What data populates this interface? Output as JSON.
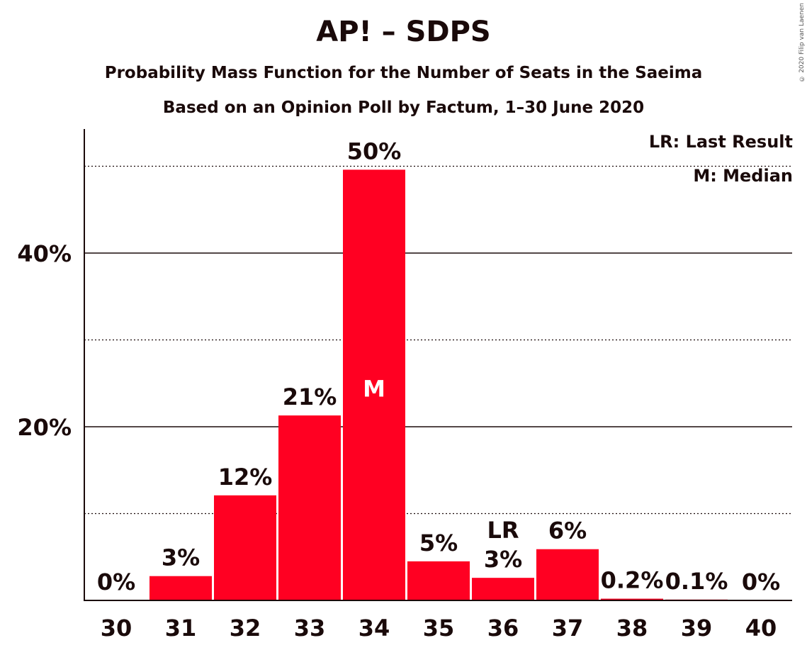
{
  "chart_data": {
    "type": "bar",
    "title": "AP! – SDPS",
    "subtitle": "Probability Mass Function for the Number of Seats in the Saeima",
    "subtitle2": "Based on an Opinion Poll by Factum, 1–30 June 2020",
    "copyright": "© 2020 Filip van Laenen",
    "categories": [
      "30",
      "31",
      "32",
      "33",
      "34",
      "35",
      "36",
      "37",
      "38",
      "39",
      "40"
    ],
    "values": [
      0,
      2.8,
      12.1,
      21.3,
      49.6,
      4.5,
      2.6,
      5.9,
      0.2,
      0.1,
      0
    ],
    "value_labels": [
      "0%",
      "3%",
      "12%",
      "21%",
      "50%",
      "5%",
      "3%",
      "6%",
      "0.2%",
      "0.1%",
      "0%"
    ],
    "ylim": [
      0,
      54
    ],
    "y_ticks": [
      {
        "value": 20,
        "label": "20%",
        "style": "solid"
      },
      {
        "value": 40,
        "label": "40%",
        "style": "solid"
      }
    ],
    "y_minor_gridlines": [
      10,
      30,
      50
    ],
    "bar_color": "#ff0022",
    "annotations": [
      {
        "category": "34",
        "text": "M",
        "position": "inside"
      },
      {
        "category": "36",
        "text": "LR",
        "position": "above"
      }
    ],
    "legend": {
      "placement": "top-right",
      "items": [
        "LR: Last Result",
        "M: Median"
      ]
    }
  }
}
